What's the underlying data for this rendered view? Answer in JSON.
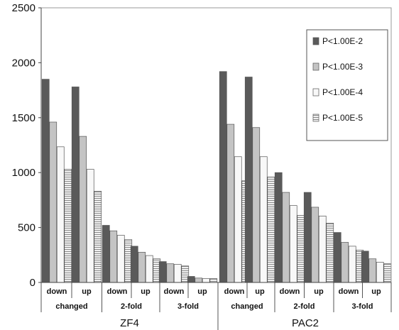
{
  "chart_data": {
    "type": "bar",
    "ylim": [
      0,
      2500
    ],
    "yticks": [
      0,
      500,
      1000,
      1500,
      2000,
      2500
    ],
    "grid": false,
    "legend_position": "top-right",
    "groups": [
      {
        "cell_line": "ZF4",
        "categories": [
          {
            "direction": "down",
            "change": "changed"
          },
          {
            "direction": "up",
            "change": "changed"
          },
          {
            "direction": "down",
            "change": "2-fold"
          },
          {
            "direction": "up",
            "change": "2-fold"
          },
          {
            "direction": "down",
            "change": "3-fold"
          },
          {
            "direction": "up",
            "change": "3-fold"
          }
        ]
      },
      {
        "cell_line": "PAC2",
        "categories": [
          {
            "direction": "down",
            "change": "changed"
          },
          {
            "direction": "up",
            "change": "changed"
          },
          {
            "direction": "down",
            "change": "2-fold"
          },
          {
            "direction": "up",
            "change": "2-fold"
          },
          {
            "direction": "down",
            "change": "3-fold"
          },
          {
            "direction": "up",
            "change": "3-fold"
          }
        ]
      }
    ],
    "series": [
      {
        "name": "P<1.00E-2",
        "color": "#5a5a5a",
        "pattern": "solid",
        "values": [
          1850,
          1780,
          520,
          330,
          190,
          55,
          1920,
          1870,
          1000,
          820,
          455,
          285
        ]
      },
      {
        "name": "P<1.00E-3",
        "color": "#c4c4c4",
        "pattern": "solid",
        "values": [
          1460,
          1330,
          470,
          275,
          170,
          40,
          1440,
          1410,
          820,
          685,
          365,
          215
        ]
      },
      {
        "name": "P<1.00E-4",
        "color": "#f8f8f8",
        "pattern": "solid",
        "values": [
          1235,
          1030,
          430,
          245,
          165,
          35,
          1145,
          1145,
          700,
          605,
          330,
          185
        ]
      },
      {
        "name": "P<1.00E-5",
        "color": "#d4d4d4",
        "pattern": "hstripe",
        "values": [
          1030,
          830,
          390,
          215,
          150,
          35,
          925,
          960,
          610,
          540,
          295,
          170
        ]
      }
    ]
  }
}
